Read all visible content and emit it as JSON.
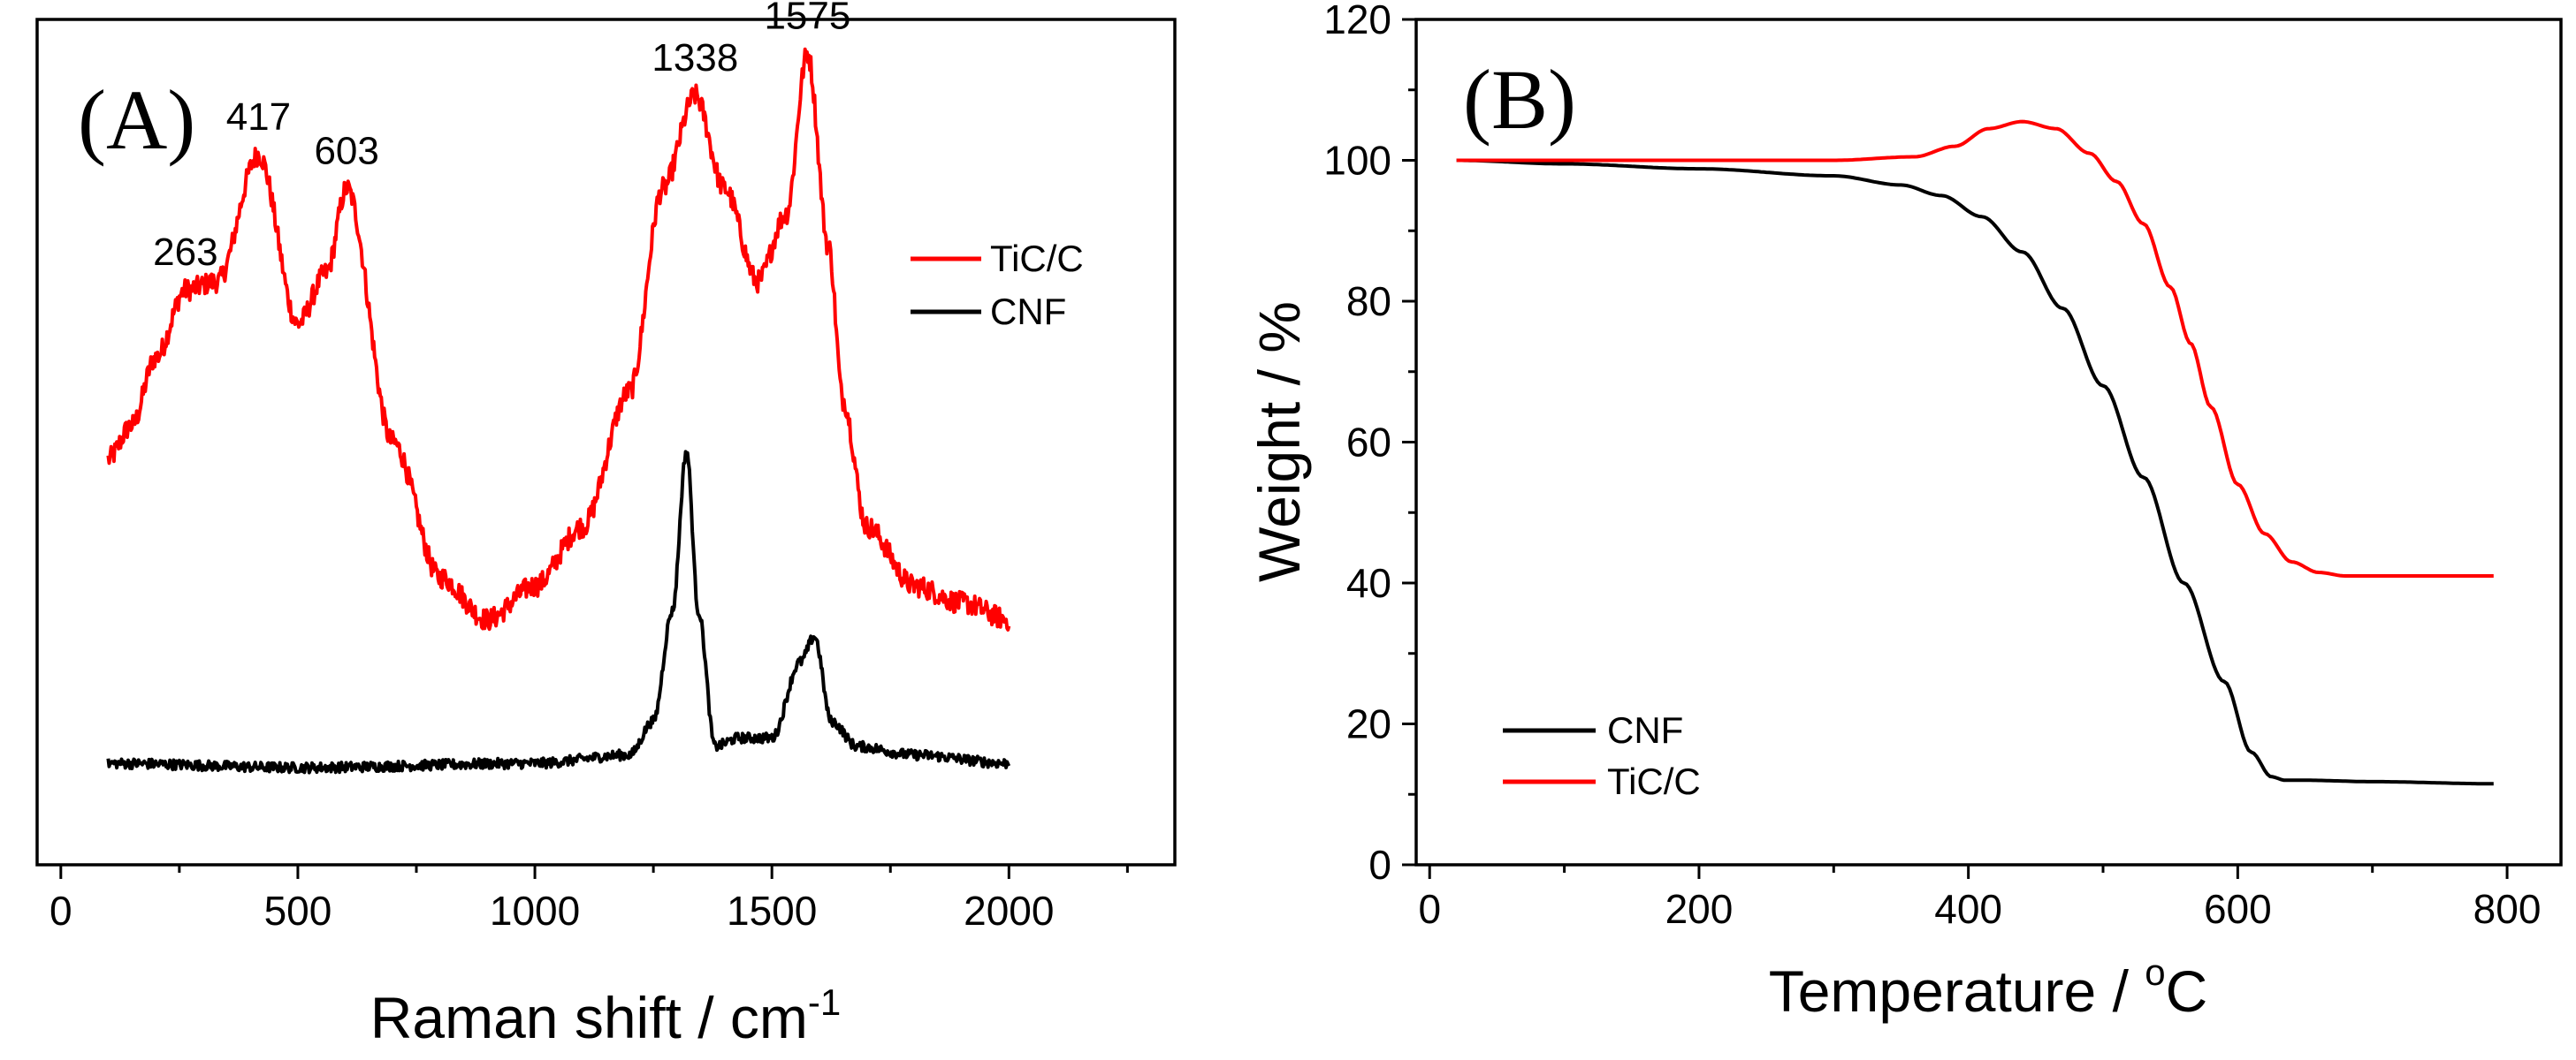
{
  "chart_data": [
    {
      "panel": "A",
      "type": "line",
      "title": "(A)",
      "xlabel": "Raman shift / cm",
      "xlabel_sup": "-1",
      "ylabel": "",
      "xlim": [
        -50,
        2350
      ],
      "ylim": [
        0,
        100
      ],
      "xticks": [
        "0",
        "500",
        "1000",
        "1500",
        "2000"
      ],
      "yticks_shown": false,
      "legend_position": "top-right",
      "colors": {
        "TiC/C": "#ff0000",
        "CNF": "#000000"
      },
      "series": [
        {
          "name": "TiC/C",
          "x": [
            100,
            150,
            200,
            263,
            330,
            417,
            500,
            560,
            603,
            700,
            800,
            900,
            1000,
            1100,
            1200,
            1270,
            1338,
            1400,
            1470,
            1530,
            1575,
            1620,
            1650,
            1700,
            1800,
            1900,
            2000
          ],
          "y": [
            48,
            52,
            60,
            68,
            69,
            84,
            64,
            70,
            80,
            50,
            34,
            29,
            33,
            40,
            56,
            80,
            91,
            80,
            69,
            77,
            96,
            73,
            55,
            40,
            33,
            31,
            29
          ],
          "noise": 1.3
        },
        {
          "name": "CNF",
          "x": [
            100,
            500,
            1000,
            1200,
            1250,
            1290,
            1320,
            1345,
            1380,
            1430,
            1500,
            1560,
            1590,
            1625,
            1680,
            1800,
            2000
          ],
          "y": [
            12,
            11.5,
            12,
            13,
            17,
            30,
            49,
            30,
            14,
            15,
            15,
            24,
            27,
            17,
            14,
            13,
            12
          ],
          "noise": 0.6
        }
      ],
      "annotations": [
        {
          "text": "263",
          "x": 263
        },
        {
          "text": "417",
          "x": 417
        },
        {
          "text": "603",
          "x": 603
        },
        {
          "text": "1338",
          "x": 1338
        },
        {
          "text": "1575",
          "x": 1575
        }
      ]
    },
    {
      "panel": "B",
      "type": "line",
      "title": "(B)",
      "xlabel": "Temperature / ",
      "xlabel_sup": "o",
      "xlabel_unit": "C",
      "ylabel": "Weight / %",
      "xlim": [
        -10,
        840
      ],
      "ylim": [
        0,
        120
      ],
      "xticks": [
        "0",
        "200",
        "400",
        "600",
        "800"
      ],
      "yticks": [
        "0",
        "20",
        "40",
        "60",
        "80",
        "100",
        "120"
      ],
      "legend_position": "bottom-left",
      "colors": {
        "CNF": "#000000",
        "TiC/C": "#ff0000"
      },
      "series": [
        {
          "name": "CNF",
          "x": [
            20,
            100,
            200,
            300,
            350,
            380,
            410,
            440,
            470,
            500,
            530,
            560,
            590,
            610,
            625,
            635,
            650,
            700,
            790
          ],
          "y": [
            100,
            99.5,
            98.8,
            97.8,
            96.5,
            95,
            92,
            87,
            79,
            68,
            55,
            40,
            26,
            16,
            12.5,
            12,
            12,
            11.8,
            11.5
          ]
        },
        {
          "name": "TiC/C",
          "x": [
            20,
            100,
            200,
            300,
            360,
            390,
            415,
            440,
            465,
            490,
            510,
            530,
            550,
            565,
            580,
            600,
            620,
            640,
            660,
            680,
            720,
            790
          ],
          "y": [
            100,
            100,
            100,
            100,
            100.5,
            102,
            104.5,
            105.5,
            104.5,
            101,
            97,
            91,
            82,
            74,
            65,
            54,
            47,
            43,
            41.5,
            41,
            41,
            41
          ]
        }
      ]
    }
  ]
}
